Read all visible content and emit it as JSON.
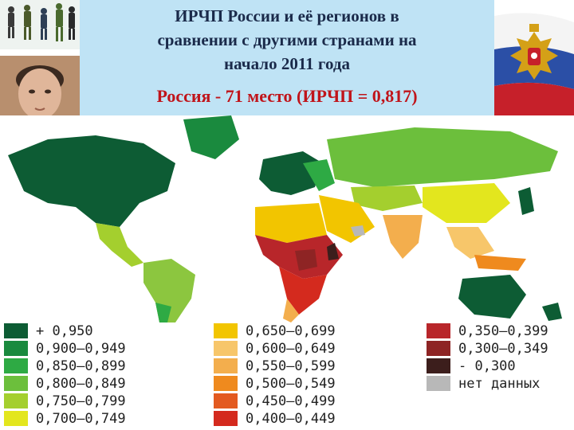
{
  "header": {
    "title_lines": [
      "ИРЧП России и её регионов в",
      "сравнении с другими странами на",
      "начало 2011 года"
    ],
    "subtitle": "Россия - 71 место (ИРЧП = 0,817)"
  },
  "map": {
    "color_very_high": "#0d5c34",
    "color_high": "#8cc63f",
    "color_medium": "#f3ae4d",
    "color_low": "#c0392b",
    "color_very_low": "#7b1a1a",
    "ocean": "#ffffff"
  },
  "legend": {
    "columns": [
      [
        {
          "label": "+ 0,950",
          "color": "#0d5c34"
        },
        {
          "label": "0,900—0,949",
          "color": "#1a8a3e"
        },
        {
          "label": "0,850—0,899",
          "color": "#2eaa44"
        },
        {
          "label": "0,800—0,849",
          "color": "#6cbf3c"
        },
        {
          "label": "0,750—0,799",
          "color": "#a4cf2e"
        },
        {
          "label": "0,700—0,749",
          "color": "#e3e61e"
        }
      ],
      [
        {
          "label": "0,650—0,699",
          "color": "#f2c500"
        },
        {
          "label": "0,600—0,649",
          "color": "#f7c66a"
        },
        {
          "label": "0,550—0,599",
          "color": "#f3ae4d"
        },
        {
          "label": "0,500—0,549",
          "color": "#ef8a1e"
        },
        {
          "label": "0,450—0,499",
          "color": "#e35a20"
        },
        {
          "label": "0,400—0,449",
          "color": "#d42a1e"
        }
      ],
      [
        {
          "label": "0,350—0,399",
          "color": "#b8262a"
        },
        {
          "label": "0,300—0,349",
          "color": "#8e2424"
        },
        {
          "label": "- 0,300",
          "color": "#3c1e1c"
        },
        {
          "label": "нет данных",
          "color": "#b8b8b8"
        }
      ]
    ]
  }
}
